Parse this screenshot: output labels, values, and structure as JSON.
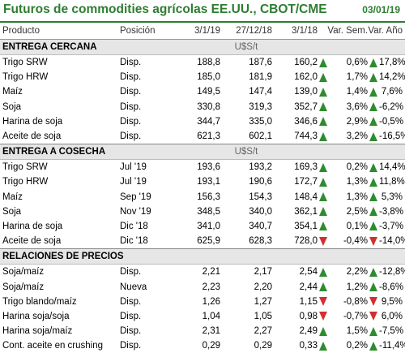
{
  "header": {
    "title": "Futuros de commodities agrícolas EE.UU., CBOT/CME",
    "date": "03/01/19"
  },
  "columns": [
    "Producto",
    "Posición",
    "3/1/19",
    "27/12/18",
    "3/1/18",
    "Var. Sem.",
    "Var. Año"
  ],
  "sections": [
    {
      "title": "ENTREGA CERCANA",
      "unit": "U$S/t",
      "rows": [
        {
          "producto": "Trigo SRW",
          "posicion": "Disp.",
          "v1": "188,8",
          "v2": "187,6",
          "v3": "160,2",
          "sem": "0,6%",
          "sem_dir": "up",
          "anio": "17,8%"
        },
        {
          "producto": "Trigo HRW",
          "posicion": "Disp.",
          "v1": "185,0",
          "v2": "181,9",
          "v3": "162,0",
          "sem": "1,7%",
          "sem_dir": "up",
          "anio": "14,2%"
        },
        {
          "producto": "Maíz",
          "posicion": "Disp.",
          "v1": "149,5",
          "v2": "147,4",
          "v3": "139,0",
          "sem": "1,4%",
          "sem_dir": "up",
          "anio": "7,6%"
        },
        {
          "producto": "Soja",
          "posicion": "Disp.",
          "v1": "330,8",
          "v2": "319,3",
          "v3": "352,7",
          "sem": "3,6%",
          "sem_dir": "up",
          "anio": "-6,2%"
        },
        {
          "producto": "Harina de soja",
          "posicion": "Disp.",
          "v1": "344,7",
          "v2": "335,0",
          "v3": "346,6",
          "sem": "2,9%",
          "sem_dir": "up",
          "anio": "-0,5%"
        },
        {
          "producto": "Aceite de soja",
          "posicion": "Disp.",
          "v1": "621,3",
          "v2": "602,1",
          "v3": "744,3",
          "sem": "3,2%",
          "sem_dir": "up",
          "anio": "-16,5%"
        }
      ]
    },
    {
      "title": "ENTREGA A COSECHA",
      "unit": "U$S/t",
      "rows": [
        {
          "producto": "Trigo SRW",
          "posicion": "Jul '19",
          "v1": "193,6",
          "v2": "193,2",
          "v3": "169,3",
          "sem": "0,2%",
          "sem_dir": "up",
          "anio": "14,4%"
        },
        {
          "producto": "Trigo HRW",
          "posicion": "Jul '19",
          "v1": "193,1",
          "v2": "190,6",
          "v3": "172,7",
          "sem": "1,3%",
          "sem_dir": "up",
          "anio": "11,8%"
        },
        {
          "producto": "Maíz",
          "posicion": "Sep '19",
          "v1": "156,3",
          "v2": "154,3",
          "v3": "148,4",
          "sem": "1,3%",
          "sem_dir": "up",
          "anio": "5,3%"
        },
        {
          "producto": "Soja",
          "posicion": "Nov '19",
          "v1": "348,5",
          "v2": "340,0",
          "v3": "362,1",
          "sem": "2,5%",
          "sem_dir": "up",
          "anio": "-3,8%"
        },
        {
          "producto": "Harina de soja",
          "posicion": "Dic '18",
          "v1": "341,0",
          "v2": "340,7",
          "v3": "354,1",
          "sem": "0,1%",
          "sem_dir": "up",
          "anio": "-3,7%"
        },
        {
          "producto": "Aceite de soja",
          "posicion": "Dic '18",
          "v1": "625,9",
          "v2": "628,3",
          "v3": "728,0",
          "sem": "-0,4%",
          "sem_dir": "down",
          "anio": "-14,0%"
        }
      ]
    },
    {
      "title": "RELACIONES DE PRECIOS",
      "unit": "",
      "rows": [
        {
          "producto": "Soja/maíz",
          "posicion": "Disp.",
          "v1": "2,21",
          "v2": "2,17",
          "v3": "2,54",
          "sem": "2,2%",
          "sem_dir": "up",
          "anio": "-12,8%"
        },
        {
          "producto": "Soja/maíz",
          "posicion": "Nueva",
          "v1": "2,23",
          "v2": "2,20",
          "v3": "2,44",
          "sem": "1,2%",
          "sem_dir": "up",
          "anio": "-8,6%"
        },
        {
          "producto": "Trigo blando/maíz",
          "posicion": "Disp.",
          "v1": "1,26",
          "v2": "1,27",
          "v3": "1,15",
          "sem": "-0,8%",
          "sem_dir": "down",
          "anio": "9,5%"
        },
        {
          "producto": "Harina soja/soja",
          "posicion": "Disp.",
          "v1": "1,04",
          "v2": "1,05",
          "v3": "0,98",
          "sem": "-0,7%",
          "sem_dir": "down",
          "anio": "6,0%"
        },
        {
          "producto": "Harina soja/maíz",
          "posicion": "Disp.",
          "v1": "2,31",
          "v2": "2,27",
          "v3": "2,49",
          "sem": "1,5%",
          "sem_dir": "up",
          "anio": "-7,5%"
        },
        {
          "producto": "Cont. aceite en crushing",
          "posicion": "Disp.",
          "v1": "0,29",
          "v2": "0,29",
          "v3": "0,33",
          "sem": "0,2%",
          "sem_dir": "up",
          "anio": "-11,4%"
        }
      ]
    }
  ],
  "colors": {
    "title": "#2e7d32",
    "arrow_up": "#2e8b2e",
    "arrow_down": "#d32f2f",
    "section_bg": "#e6e6e6"
  },
  "icons": {
    "up": "arrow-up-icon",
    "down": "arrow-down-icon"
  }
}
